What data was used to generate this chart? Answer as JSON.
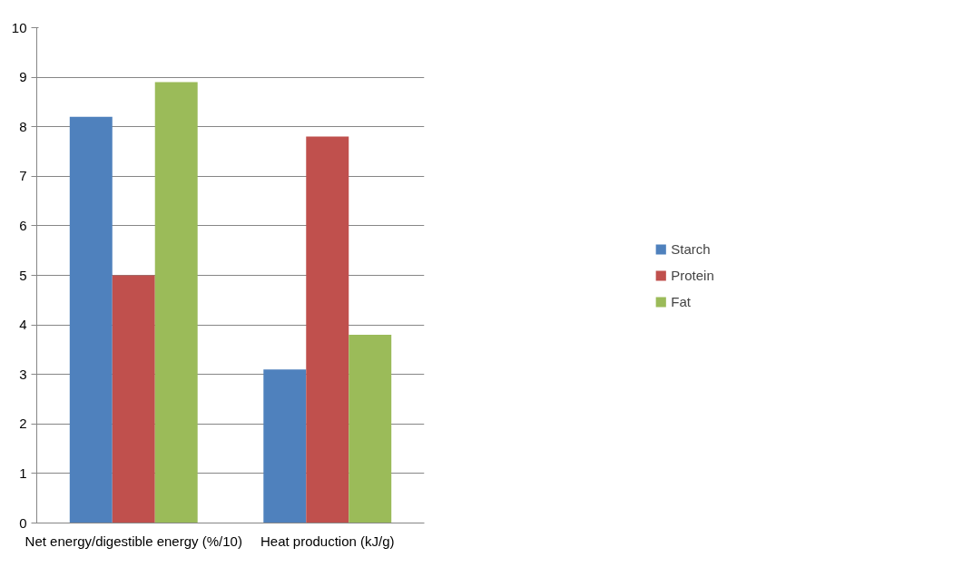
{
  "chart_data": {
    "type": "bar",
    "categories": [
      "Net energy/digestible energy (%/10)",
      "Heat production (kJ/g)"
    ],
    "series": [
      {
        "name": "Starch",
        "color": "#4f81bd",
        "values": [
          8.2,
          3.1
        ]
      },
      {
        "name": "Protein",
        "color": "#c0504d",
        "values": [
          5.0,
          7.8
        ]
      },
      {
        "name": "Fat",
        "color": "#9bbb59",
        "values": [
          8.9,
          3.8
        ]
      }
    ],
    "ylim": [
      0,
      10
    ],
    "yticks": [
      0,
      1,
      2,
      3,
      4,
      5,
      6,
      7,
      8,
      9,
      10
    ],
    "grid": "y",
    "legend": "right"
  }
}
